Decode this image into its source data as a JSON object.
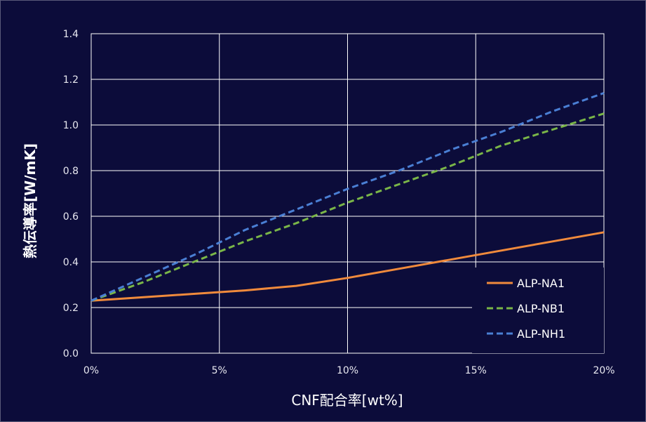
{
  "chart_data": {
    "type": "line",
    "title": "",
    "xlabel": "CNF配合率[wt%]",
    "ylabel": "熱伝導率[W/mK]",
    "x_ticks": [
      "0%",
      "5%",
      "10%",
      "15%",
      "20%"
    ],
    "y_ticks": [
      "0.0",
      "0.2",
      "0.4",
      "0.6",
      "0.8",
      "1.0",
      "1.2",
      "1.4"
    ],
    "xlim": [
      0,
      20
    ],
    "ylim": [
      0,
      1.4
    ],
    "grid": true,
    "legend_position": "bottom-right",
    "series": [
      {
        "name": "ALP-NA1",
        "color": "#f08a3c",
        "dash": "solid",
        "x": [
          0,
          2,
          4,
          6,
          8,
          10,
          12,
          14,
          16,
          18,
          20
        ],
        "y": [
          0.23,
          0.245,
          0.26,
          0.275,
          0.295,
          0.33,
          0.37,
          0.41,
          0.45,
          0.49,
          0.53
        ]
      },
      {
        "name": "ALP-NB1",
        "color": "#7ab648",
        "dash": "dashed",
        "x": [
          0,
          2,
          4,
          6,
          8,
          10,
          12,
          14,
          16,
          18,
          20
        ],
        "y": [
          0.23,
          0.31,
          0.4,
          0.49,
          0.57,
          0.66,
          0.74,
          0.82,
          0.91,
          0.98,
          1.05
        ]
      },
      {
        "name": "ALP-NH1",
        "color": "#4a7fd4",
        "dash": "dashed",
        "x": [
          0,
          2,
          4,
          6,
          8,
          10,
          12,
          14,
          16,
          18,
          20
        ],
        "y": [
          0.23,
          0.33,
          0.43,
          0.54,
          0.63,
          0.72,
          0.8,
          0.89,
          0.97,
          1.06,
          1.14
        ]
      }
    ]
  }
}
